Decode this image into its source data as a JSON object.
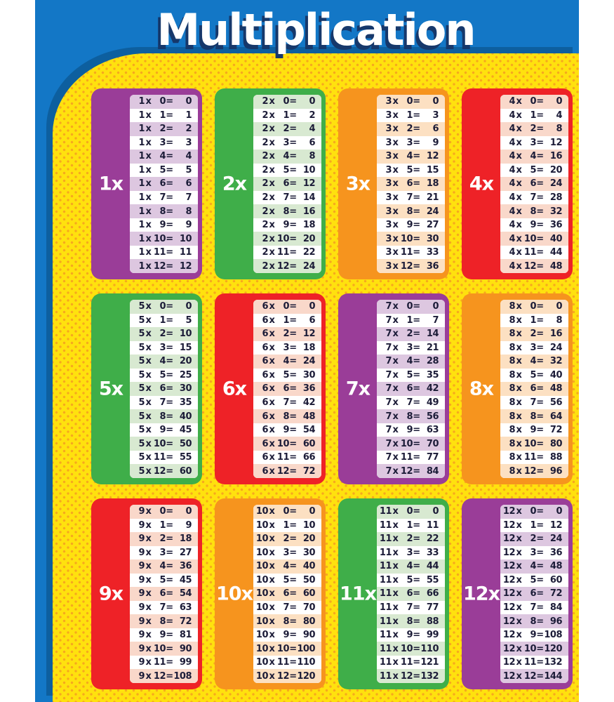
{
  "page": {
    "title": "Multiplication"
  },
  "colors": {
    "banner_blue": "#1377c6",
    "edge_navy": "#0d5f9f",
    "title_shadow_navy": "#16386b",
    "paper_yellow": "#ffe10e",
    "dot_orange": "#f6a81f",
    "equation_text": "#1c1c38",
    "label_text": "#ffffff",
    "palette": {
      "purple": {
        "bg": "#9a3d98",
        "tint": "#ddc7e0"
      },
      "green": {
        "bg": "#3fae49",
        "tint": "#d8e9d1"
      },
      "orange": {
        "bg": "#f6941e",
        "tint": "#fce0c2"
      },
      "red": {
        "bg": "#ee2227",
        "tint": "#f9d8ca"
      }
    }
  },
  "chart_data": {
    "type": "table",
    "title": "Multiplication",
    "times_symbol": "x",
    "equals_symbol": "=",
    "multiplicands": [
      0,
      1,
      2,
      3,
      4,
      5,
      6,
      7,
      8,
      9,
      10,
      11,
      12
    ],
    "tables": [
      {
        "label": "1x",
        "factor": 1,
        "color": "purple",
        "products": [
          0,
          1,
          2,
          3,
          4,
          5,
          6,
          7,
          8,
          9,
          10,
          11,
          12
        ]
      },
      {
        "label": "2x",
        "factor": 2,
        "color": "green",
        "products": [
          0,
          2,
          4,
          6,
          8,
          10,
          12,
          14,
          16,
          18,
          20,
          22,
          24
        ]
      },
      {
        "label": "3x",
        "factor": 3,
        "color": "orange",
        "products": [
          0,
          3,
          6,
          9,
          12,
          15,
          18,
          21,
          24,
          27,
          30,
          33,
          36
        ]
      },
      {
        "label": "4x",
        "factor": 4,
        "color": "red",
        "products": [
          0,
          4,
          8,
          12,
          16,
          20,
          24,
          28,
          32,
          36,
          40,
          44,
          48
        ]
      },
      {
        "label": "5x",
        "factor": 5,
        "color": "green",
        "products": [
          0,
          5,
          10,
          15,
          20,
          25,
          30,
          35,
          40,
          45,
          50,
          55,
          60
        ]
      },
      {
        "label": "6x",
        "factor": 6,
        "color": "red",
        "products": [
          0,
          6,
          12,
          18,
          24,
          30,
          36,
          42,
          48,
          54,
          60,
          66,
          72
        ]
      },
      {
        "label": "7x",
        "factor": 7,
        "color": "purple",
        "products": [
          0,
          7,
          14,
          21,
          28,
          35,
          42,
          49,
          56,
          63,
          70,
          77,
          84
        ]
      },
      {
        "label": "8x",
        "factor": 8,
        "color": "orange",
        "products": [
          0,
          8,
          16,
          24,
          32,
          40,
          48,
          56,
          64,
          72,
          80,
          88,
          96
        ]
      },
      {
        "label": "9x",
        "factor": 9,
        "color": "red",
        "products": [
          0,
          9,
          18,
          27,
          36,
          45,
          54,
          63,
          72,
          81,
          90,
          99,
          108
        ]
      },
      {
        "label": "10x",
        "factor": 10,
        "color": "orange",
        "products": [
          0,
          10,
          20,
          30,
          40,
          50,
          60,
          70,
          80,
          90,
          100,
          110,
          120
        ]
      },
      {
        "label": "11x",
        "factor": 11,
        "color": "green",
        "products": [
          0,
          11,
          22,
          33,
          44,
          55,
          66,
          77,
          88,
          99,
          110,
          121,
          132
        ]
      },
      {
        "label": "12x",
        "factor": 12,
        "color": "purple",
        "products": [
          0,
          12,
          24,
          36,
          48,
          60,
          72,
          84,
          96,
          108,
          120,
          132,
          144
        ]
      }
    ]
  }
}
